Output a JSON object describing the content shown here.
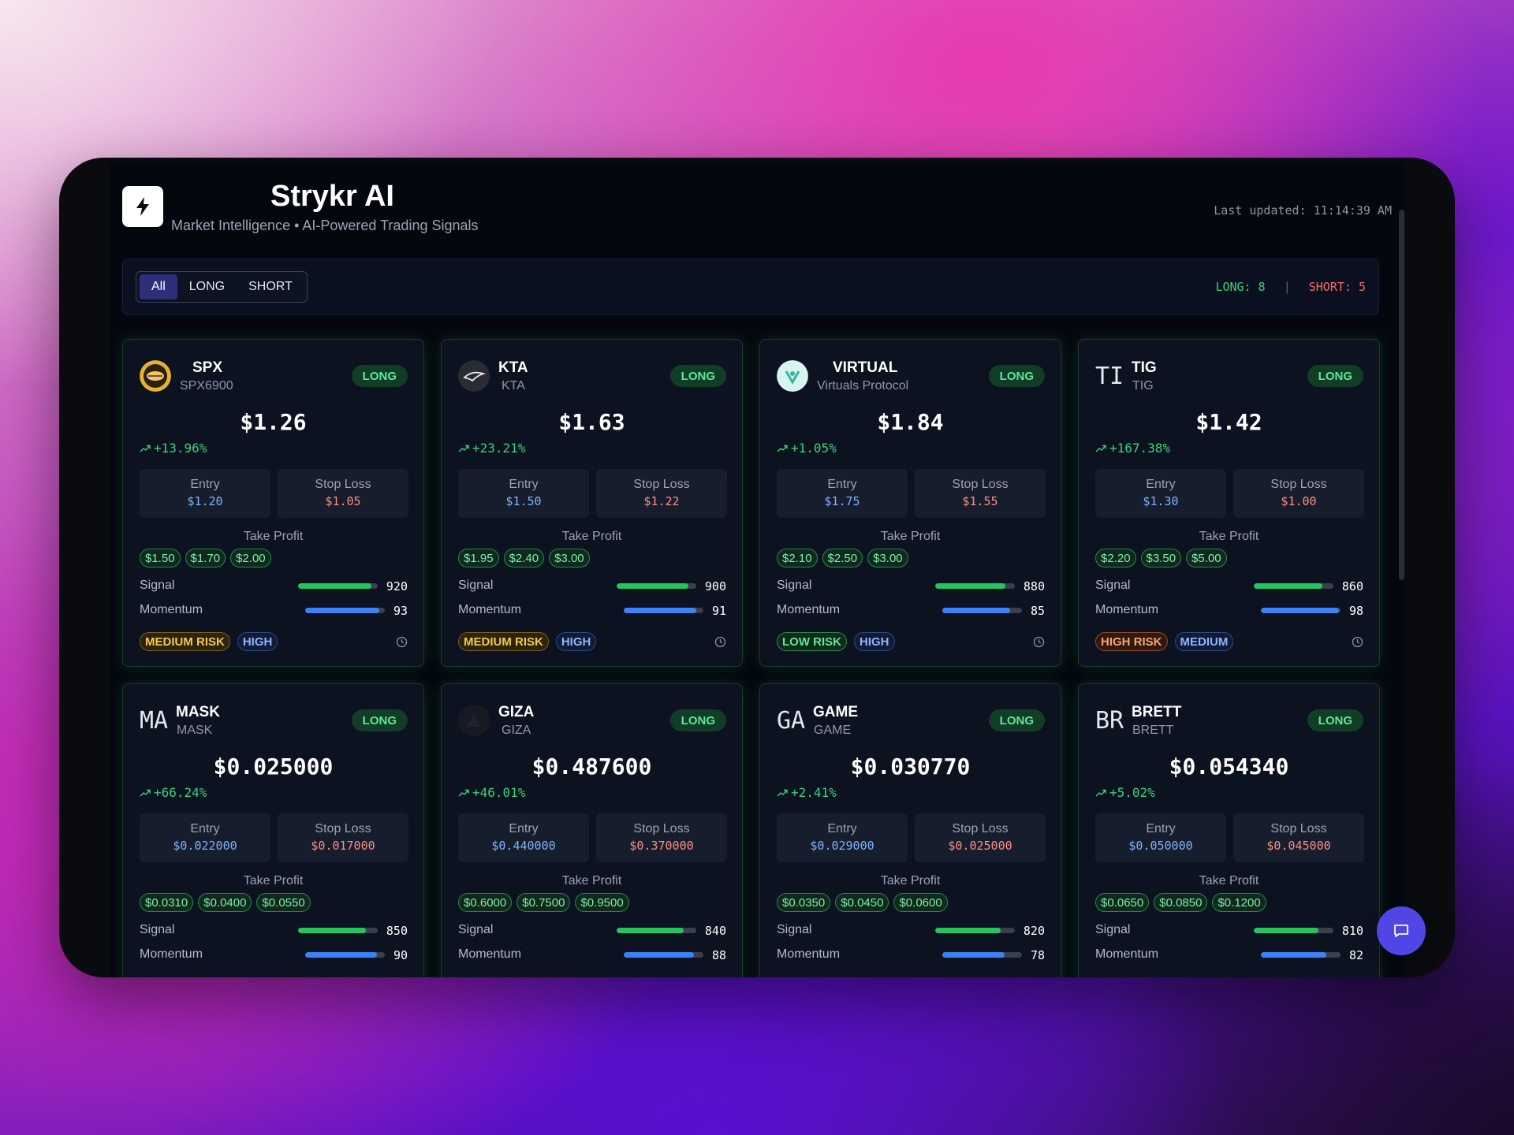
{
  "app": {
    "title": "Strykr AI",
    "subtitle": "Market Intelligence • AI-Powered Trading Signals",
    "last_updated": "Last updated: 11:14:39 AM"
  },
  "filters": {
    "tabs": [
      {
        "label": "All",
        "active": true
      },
      {
        "label": "LONG",
        "active": false
      },
      {
        "label": "SHORT",
        "active": false
      }
    ]
  },
  "counts": {
    "long_text": "LONG: 8",
    "separator": "|",
    "short_text": "SHORT: 5"
  },
  "labels": {
    "entry": "Entry",
    "stop_loss": "Stop Loss",
    "take_profit": "Take Profit",
    "signal": "Signal",
    "momentum": "Momentum"
  },
  "colors": {
    "long": "#22c55e",
    "short": "#f46a6a",
    "accent": "#4f46e5",
    "signal_bar": "#22c55e",
    "momentum_bar": "#3b82f6"
  },
  "cards": [
    {
      "symbol": "SPX",
      "name": "SPX6900",
      "icon": "spx-coin-icon",
      "icon_text": "",
      "side": "LONG",
      "price": "$1.26",
      "change": "+13.96%",
      "entry": "$1.20",
      "stop_loss": "$1.05",
      "take_profits": [
        "$1.50",
        "$1.70",
        "$2.00"
      ],
      "signal": 920,
      "signal_pct": 0.92,
      "momentum": 93,
      "momentum_pct": 0.93,
      "risk": "MEDIUM RISK",
      "risk_level": "medium",
      "confidence": "HIGH"
    },
    {
      "symbol": "KTA",
      "name": "KTA",
      "icon": "kta-coin-icon",
      "icon_text": "",
      "side": "LONG",
      "price": "$1.63",
      "change": "+23.21%",
      "entry": "$1.50",
      "stop_loss": "$1.22",
      "take_profits": [
        "$1.95",
        "$2.40",
        "$3.00"
      ],
      "signal": 900,
      "signal_pct": 0.9,
      "momentum": 91,
      "momentum_pct": 0.91,
      "risk": "MEDIUM RISK",
      "risk_level": "medium",
      "confidence": "HIGH"
    },
    {
      "symbol": "VIRTUAL",
      "name": "Virtuals Protocol",
      "icon": "virtual-coin-icon",
      "icon_text": "",
      "side": "LONG",
      "price": "$1.84",
      "change": "+1.05%",
      "entry": "$1.75",
      "stop_loss": "$1.55",
      "take_profits": [
        "$2.10",
        "$2.50",
        "$3.00"
      ],
      "signal": 880,
      "signal_pct": 0.88,
      "momentum": 85,
      "momentum_pct": 0.85,
      "risk": "LOW RISK",
      "risk_level": "low",
      "confidence": "HIGH"
    },
    {
      "symbol": "TIG",
      "name": "TIG",
      "icon": "tig-text-icon",
      "icon_text": "TI",
      "side": "LONG",
      "price": "$1.42",
      "change": "+167.38%",
      "entry": "$1.30",
      "stop_loss": "$1.00",
      "take_profits": [
        "$2.20",
        "$3.50",
        "$5.00"
      ],
      "signal": 860,
      "signal_pct": 0.86,
      "momentum": 98,
      "momentum_pct": 0.98,
      "risk": "HIGH RISK",
      "risk_level": "high",
      "confidence": "MEDIUM"
    },
    {
      "symbol": "MASK",
      "name": "MASK",
      "icon": "mask-text-icon",
      "icon_text": "MA",
      "side": "LONG",
      "price": "$0.025000",
      "change": "+66.24%",
      "entry": "$0.022000",
      "stop_loss": "$0.017000",
      "take_profits": [
        "$0.0310",
        "$0.0400",
        "$0.0550"
      ],
      "signal": 850,
      "signal_pct": 0.85,
      "momentum": 90,
      "momentum_pct": 0.9,
      "risk": "",
      "risk_level": "",
      "confidence": ""
    },
    {
      "symbol": "GIZA",
      "name": "GIZA",
      "icon": "giza-coin-icon",
      "icon_text": "",
      "side": "LONG",
      "price": "$0.487600",
      "change": "+46.01%",
      "entry": "$0.440000",
      "stop_loss": "$0.370000",
      "take_profits": [
        "$0.6000",
        "$0.7500",
        "$0.9500"
      ],
      "signal": 840,
      "signal_pct": 0.84,
      "momentum": 88,
      "momentum_pct": 0.88,
      "risk": "",
      "risk_level": "",
      "confidence": ""
    },
    {
      "symbol": "GAME",
      "name": "GAME",
      "icon": "game-text-icon",
      "icon_text": "GA",
      "side": "LONG",
      "price": "$0.030770",
      "change": "+2.41%",
      "entry": "$0.029000",
      "stop_loss": "$0.025000",
      "take_profits": [
        "$0.0350",
        "$0.0450",
        "$0.0600"
      ],
      "signal": 820,
      "signal_pct": 0.82,
      "momentum": 78,
      "momentum_pct": 0.78,
      "risk": "",
      "risk_level": "",
      "confidence": ""
    },
    {
      "symbol": "BRETT",
      "name": "BRETT",
      "icon": "brett-text-icon",
      "icon_text": "BR",
      "side": "LONG",
      "price": "$0.054340",
      "change": "+5.02%",
      "entry": "$0.050000",
      "stop_loss": "$0.045000",
      "take_profits": [
        "$0.0650",
        "$0.0850",
        "$0.1200"
      ],
      "signal": 810,
      "signal_pct": 0.81,
      "momentum": 82,
      "momentum_pct": 0.82,
      "risk": "",
      "risk_level": "",
      "confidence": ""
    }
  ]
}
